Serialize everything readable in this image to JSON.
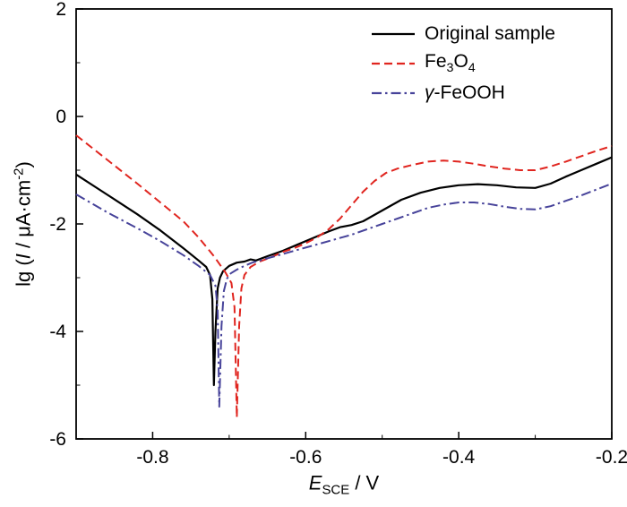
{
  "figure": {
    "background": "#ffffff",
    "frame_color": "#000000",
    "text_color": "#000000"
  },
  "chart_data": {
    "type": "line",
    "title": "",
    "xlabel_parts": [
      {
        "text": "E",
        "style": "italic"
      },
      {
        "text": "SCE",
        "style": "sub"
      },
      {
        "text": " / V"
      }
    ],
    "ylabel_parts": [
      {
        "text": "lg ("
      },
      {
        "text": "I",
        "style": "italic"
      },
      {
        "text": " / μA·cm"
      },
      {
        "text": "-2",
        "style": "sup"
      },
      {
        "text": ")"
      }
    ],
    "xlim": [
      -0.9,
      -0.2
    ],
    "ylim": [
      -6,
      2
    ],
    "x_major_ticks": [
      -0.8,
      -0.6,
      -0.4,
      -0.2
    ],
    "x_tick_labels": [
      "-0.8",
      "-0.6",
      "-0.4",
      "-0.2"
    ],
    "x_minor_ticks": [
      -0.9,
      -0.7,
      -0.5,
      -0.3
    ],
    "y_major_ticks": [
      -6,
      -4,
      -2,
      0,
      2
    ],
    "y_tick_labels": [
      "-6",
      "-4",
      "-2",
      "0",
      "2"
    ],
    "y_minor_ticks": [
      -5,
      -3,
      -1,
      1
    ],
    "grid": false,
    "legend_position": "top-right-inside",
    "series": [
      {
        "name": "original-sample",
        "label_parts": [
          {
            "text": "Original sample"
          }
        ],
        "color": "#000000",
        "dash": "solid",
        "width": 2.2,
        "points": [
          [
            -0.9,
            -1.08
          ],
          [
            -0.86,
            -1.45
          ],
          [
            -0.82,
            -1.82
          ],
          [
            -0.79,
            -2.12
          ],
          [
            -0.76,
            -2.45
          ],
          [
            -0.74,
            -2.68
          ],
          [
            -0.73,
            -2.8
          ],
          [
            -0.725,
            -2.95
          ],
          [
            -0.722,
            -3.4
          ],
          [
            -0.72,
            -5.0
          ],
          [
            -0.718,
            -4.0
          ],
          [
            -0.715,
            -3.2
          ],
          [
            -0.712,
            -3.0
          ],
          [
            -0.708,
            -2.88
          ],
          [
            -0.7,
            -2.78
          ],
          [
            -0.69,
            -2.72
          ],
          [
            -0.68,
            -2.7
          ],
          [
            -0.672,
            -2.66
          ],
          [
            -0.665,
            -2.68
          ],
          [
            -0.65,
            -2.6
          ],
          [
            -0.63,
            -2.5
          ],
          [
            -0.61,
            -2.38
          ],
          [
            -0.59,
            -2.26
          ],
          [
            -0.57,
            -2.14
          ],
          [
            -0.555,
            -2.06
          ],
          [
            -0.54,
            -2.02
          ],
          [
            -0.525,
            -1.95
          ],
          [
            -0.5,
            -1.75
          ],
          [
            -0.475,
            -1.55
          ],
          [
            -0.45,
            -1.42
          ],
          [
            -0.425,
            -1.33
          ],
          [
            -0.4,
            -1.28
          ],
          [
            -0.375,
            -1.26
          ],
          [
            -0.35,
            -1.28
          ],
          [
            -0.325,
            -1.32
          ],
          [
            -0.3,
            -1.33
          ],
          [
            -0.28,
            -1.25
          ],
          [
            -0.26,
            -1.12
          ],
          [
            -0.24,
            -1.0
          ],
          [
            -0.22,
            -0.88
          ],
          [
            -0.2,
            -0.76
          ]
        ]
      },
      {
        "name": "fe3o4",
        "label_parts": [
          {
            "text": "Fe"
          },
          {
            "text": "3",
            "style": "sub"
          },
          {
            "text": "O"
          },
          {
            "text": "4",
            "style": "sub"
          }
        ],
        "color": "#e0251f",
        "dash": "dashed",
        "width": 2,
        "points": [
          [
            -0.9,
            -0.35
          ],
          [
            -0.86,
            -0.8
          ],
          [
            -0.82,
            -1.25
          ],
          [
            -0.79,
            -1.6
          ],
          [
            -0.76,
            -1.95
          ],
          [
            -0.74,
            -2.25
          ],
          [
            -0.72,
            -2.6
          ],
          [
            -0.705,
            -2.9
          ],
          [
            -0.697,
            -3.1
          ],
          [
            -0.693,
            -3.55
          ],
          [
            -0.69,
            -5.6
          ],
          [
            -0.687,
            -3.9
          ],
          [
            -0.684,
            -3.2
          ],
          [
            -0.68,
            -2.95
          ],
          [
            -0.672,
            -2.8
          ],
          [
            -0.66,
            -2.7
          ],
          [
            -0.645,
            -2.62
          ],
          [
            -0.63,
            -2.52
          ],
          [
            -0.615,
            -2.45
          ],
          [
            -0.6,
            -2.36
          ],
          [
            -0.585,
            -2.25
          ],
          [
            -0.57,
            -2.1
          ],
          [
            -0.555,
            -1.9
          ],
          [
            -0.54,
            -1.65
          ],
          [
            -0.525,
            -1.4
          ],
          [
            -0.51,
            -1.2
          ],
          [
            -0.495,
            -1.05
          ],
          [
            -0.48,
            -0.97
          ],
          [
            -0.46,
            -0.9
          ],
          [
            -0.44,
            -0.84
          ],
          [
            -0.42,
            -0.82
          ],
          [
            -0.4,
            -0.84
          ],
          [
            -0.38,
            -0.88
          ],
          [
            -0.36,
            -0.93
          ],
          [
            -0.34,
            -0.97
          ],
          [
            -0.32,
            -1.0
          ],
          [
            -0.3,
            -1.0
          ],
          [
            -0.28,
            -0.93
          ],
          [
            -0.26,
            -0.84
          ],
          [
            -0.24,
            -0.74
          ],
          [
            -0.22,
            -0.64
          ],
          [
            -0.2,
            -0.55
          ]
        ]
      },
      {
        "name": "gamma-feooh",
        "label_parts": [
          {
            "text": "γ",
            "style": "italic"
          },
          {
            "text": "-FeOOH"
          }
        ],
        "color": "#47439a",
        "dash": "dashdot",
        "width": 2,
        "points": [
          [
            -0.9,
            -1.45
          ],
          [
            -0.86,
            -1.78
          ],
          [
            -0.82,
            -2.08
          ],
          [
            -0.79,
            -2.32
          ],
          [
            -0.76,
            -2.58
          ],
          [
            -0.74,
            -2.78
          ],
          [
            -0.725,
            -2.95
          ],
          [
            -0.718,
            -3.15
          ],
          [
            -0.715,
            -3.6
          ],
          [
            -0.713,
            -5.4
          ],
          [
            -0.71,
            -3.9
          ],
          [
            -0.707,
            -3.25
          ],
          [
            -0.703,
            -3.02
          ],
          [
            -0.698,
            -2.92
          ],
          [
            -0.69,
            -2.85
          ],
          [
            -0.68,
            -2.78
          ],
          [
            -0.67,
            -2.72
          ],
          [
            -0.655,
            -2.66
          ],
          [
            -0.64,
            -2.6
          ],
          [
            -0.62,
            -2.52
          ],
          [
            -0.6,
            -2.44
          ],
          [
            -0.58,
            -2.36
          ],
          [
            -0.56,
            -2.28
          ],
          [
            -0.54,
            -2.2
          ],
          [
            -0.52,
            -2.1
          ],
          [
            -0.5,
            -2.0
          ],
          [
            -0.48,
            -1.9
          ],
          [
            -0.46,
            -1.8
          ],
          [
            -0.44,
            -1.7
          ],
          [
            -0.42,
            -1.64
          ],
          [
            -0.4,
            -1.6
          ],
          [
            -0.38,
            -1.6
          ],
          [
            -0.36,
            -1.63
          ],
          [
            -0.34,
            -1.68
          ],
          [
            -0.32,
            -1.72
          ],
          [
            -0.3,
            -1.73
          ],
          [
            -0.28,
            -1.67
          ],
          [
            -0.26,
            -1.57
          ],
          [
            -0.24,
            -1.47
          ],
          [
            -0.22,
            -1.36
          ],
          [
            -0.2,
            -1.25
          ]
        ]
      }
    ]
  }
}
